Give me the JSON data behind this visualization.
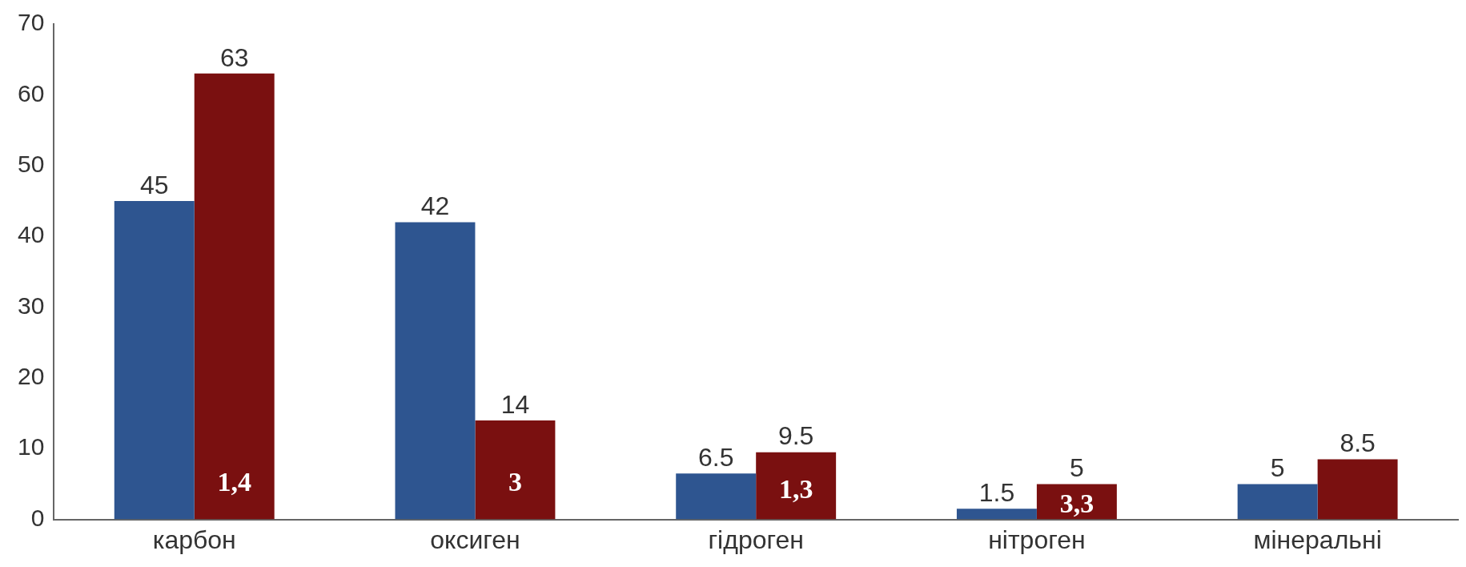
{
  "chart_data": {
    "type": "bar",
    "categories": [
      "карбон",
      "оксиген",
      "гідроген",
      "нітроген",
      "мінеральні"
    ],
    "series": [
      {
        "color": "#2e5590",
        "values": [
          45,
          42,
          6.5,
          1.5,
          5
        ]
      },
      {
        "color": "#7a1010",
        "values": [
          63,
          14,
          9.5,
          5,
          8.5
        ]
      }
    ],
    "ylim": [
      0,
      70
    ],
    "yticks": [
      0,
      10,
      20,
      30,
      40,
      50,
      60,
      70
    ],
    "grid": false,
    "legend": false,
    "data_labels": true,
    "annotations": [
      {
        "text": "1,4",
        "x": "карбон",
        "y": 5
      },
      {
        "text": "3",
        "x": "оксиген",
        "y": 5
      },
      {
        "text": "1,3",
        "x": "гідроген",
        "y": 4
      },
      {
        "text": "3,3",
        "x": "нітроген",
        "y": 2
      }
    ]
  }
}
